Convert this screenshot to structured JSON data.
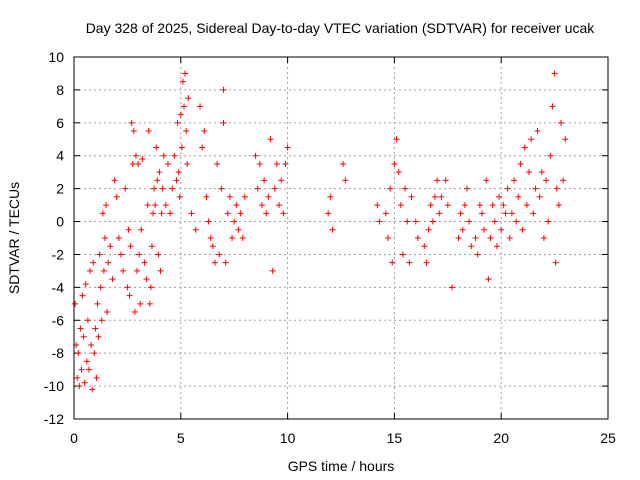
{
  "chart_data": {
    "type": "scatter",
    "title": "Day 328 of 2025, Sidereal Day-to-day VTEC variation (SDTVAR) for receiver ucak",
    "xlabel": "GPS time / hours",
    "ylabel": "SDTVAR / TECUs",
    "xlim": [
      0,
      25
    ],
    "ylim": [
      -12,
      10
    ],
    "xticks": [
      0,
      5,
      10,
      15,
      20,
      25
    ],
    "yticks": [
      -12,
      -10,
      -8,
      -6,
      -4,
      -2,
      0,
      2,
      4,
      6,
      8,
      10
    ],
    "grid": true,
    "marker": "+",
    "color": "#ff0000",
    "series": [
      {
        "name": "ucak",
        "points": [
          [
            0.05,
            -5.0
          ],
          [
            0.1,
            -7.5
          ],
          [
            0.15,
            -9.5
          ],
          [
            0.2,
            -8.0
          ],
          [
            0.25,
            -10.0
          ],
          [
            0.3,
            -6.5
          ],
          [
            0.35,
            -9.0
          ],
          [
            0.4,
            -4.5
          ],
          [
            0.45,
            -7.0
          ],
          [
            0.5,
            -9.8
          ],
          [
            0.55,
            -3.8
          ],
          [
            0.6,
            -8.5
          ],
          [
            0.65,
            -6.0
          ],
          [
            0.7,
            -9.0
          ],
          [
            0.75,
            -3.0
          ],
          [
            0.8,
            -7.5
          ],
          [
            0.85,
            -10.2
          ],
          [
            0.9,
            -2.5
          ],
          [
            0.95,
            -8.0
          ],
          [
            1.0,
            -6.5
          ],
          [
            1.05,
            -9.5
          ],
          [
            1.1,
            -5.0
          ],
          [
            1.15,
            -7.0
          ],
          [
            1.2,
            -2.0
          ],
          [
            1.25,
            -4.0
          ],
          [
            1.3,
            -6.0
          ],
          [
            1.35,
            0.5
          ],
          [
            1.4,
            -3.0
          ],
          [
            1.45,
            -1.0
          ],
          [
            1.5,
            1.0
          ],
          [
            1.55,
            -5.5
          ],
          [
            1.6,
            -2.5
          ],
          [
            1.7,
            -1.5
          ],
          [
            1.8,
            -3.5
          ],
          [
            1.9,
            2.5
          ],
          [
            2.0,
            1.5
          ],
          [
            2.1,
            -1.0
          ],
          [
            2.2,
            -2.0
          ],
          [
            2.3,
            -3.0
          ],
          [
            2.4,
            2.0
          ],
          [
            2.5,
            -4.0
          ],
          [
            2.55,
            -0.5
          ],
          [
            2.6,
            -4.5
          ],
          [
            2.65,
            -1.5
          ],
          [
            2.7,
            6.0
          ],
          [
            2.75,
            3.5
          ],
          [
            2.8,
            5.5
          ],
          [
            2.85,
            -5.5
          ],
          [
            2.9,
            4.0
          ],
          [
            2.95,
            -3.0
          ],
          [
            3.0,
            3.5
          ],
          [
            3.05,
            -2.0
          ],
          [
            3.1,
            -5.0
          ],
          [
            3.15,
            -0.5
          ],
          [
            3.2,
            3.8
          ],
          [
            3.3,
            -2.5
          ],
          [
            3.4,
            -3.5
          ],
          [
            3.45,
            1.0
          ],
          [
            3.5,
            5.5
          ],
          [
            3.55,
            -5.0
          ],
          [
            3.6,
            -4.0
          ],
          [
            3.65,
            -1.5
          ],
          [
            3.7,
            0.5
          ],
          [
            3.75,
            2.0
          ],
          [
            3.8,
            1.0
          ],
          [
            3.85,
            4.5
          ],
          [
            3.9,
            2.5
          ],
          [
            3.95,
            -2.0
          ],
          [
            4.0,
            3.0
          ],
          [
            4.05,
            -3.0
          ],
          [
            4.1,
            0.5
          ],
          [
            4.15,
            2.0
          ],
          [
            4.2,
            4.0
          ],
          [
            4.3,
            1.0
          ],
          [
            4.4,
            3.5
          ],
          [
            4.5,
            0.5
          ],
          [
            4.6,
            2.0
          ],
          [
            4.7,
            4.0
          ],
          [
            4.8,
            2.5
          ],
          [
            4.85,
            6.0
          ],
          [
            4.9,
            3.0
          ],
          [
            4.95,
            1.5
          ],
          [
            5.0,
            6.5
          ],
          [
            5.05,
            4.5
          ],
          [
            5.1,
            8.5
          ],
          [
            5.15,
            7.0
          ],
          [
            5.2,
            9.0
          ],
          [
            5.25,
            5.5
          ],
          [
            5.3,
            3.5
          ],
          [
            5.35,
            7.5
          ],
          [
            5.5,
            0.5
          ],
          [
            5.7,
            -0.5
          ],
          [
            5.9,
            7.0
          ],
          [
            6.0,
            4.5
          ],
          [
            6.1,
            5.5
          ],
          [
            6.2,
            1.5
          ],
          [
            6.3,
            0.0
          ],
          [
            6.4,
            -1.0
          ],
          [
            6.5,
            -1.5
          ],
          [
            6.6,
            -2.5
          ],
          [
            6.7,
            3.5
          ],
          [
            6.8,
            -2.0
          ],
          [
            6.9,
            2.0
          ],
          [
            7.0,
            8.0
          ],
          [
            7.0,
            6.0
          ],
          [
            7.1,
            -2.5
          ],
          [
            7.2,
            0.5
          ],
          [
            7.3,
            1.5
          ],
          [
            7.4,
            -1.0
          ],
          [
            7.5,
            0.0
          ],
          [
            7.6,
            1.0
          ],
          [
            7.7,
            -0.5
          ],
          [
            7.8,
            0.5
          ],
          [
            7.9,
            -1.0
          ],
          [
            8.0,
            1.5
          ],
          [
            8.5,
            4.0
          ],
          [
            8.6,
            2.0
          ],
          [
            8.7,
            3.5
          ],
          [
            8.8,
            1.0
          ],
          [
            8.9,
            2.5
          ],
          [
            9.0,
            0.5
          ],
          [
            9.1,
            1.5
          ],
          [
            9.2,
            5.0
          ],
          [
            9.3,
            -3.0
          ],
          [
            9.4,
            2.0
          ],
          [
            9.5,
            3.5
          ],
          [
            9.6,
            1.0
          ],
          [
            9.7,
            2.5
          ],
          [
            9.8,
            0.5
          ],
          [
            9.9,
            3.5
          ],
          [
            10.0,
            4.5
          ],
          [
            11.9,
            0.5
          ],
          [
            12.0,
            1.5
          ],
          [
            12.1,
            -0.5
          ],
          [
            12.6,
            3.5
          ],
          [
            12.7,
            2.5
          ],
          [
            14.2,
            1.0
          ],
          [
            14.3,
            0.0
          ],
          [
            14.6,
            0.5
          ],
          [
            14.7,
            -1.0
          ],
          [
            14.8,
            2.0
          ],
          [
            14.9,
            -2.5
          ],
          [
            15.0,
            3.5
          ],
          [
            15.1,
            5.0
          ],
          [
            15.2,
            3.0
          ],
          [
            15.3,
            1.0
          ],
          [
            15.4,
            -2.0
          ],
          [
            15.5,
            2.0
          ],
          [
            15.6,
            0.0
          ],
          [
            15.7,
            -2.5
          ],
          [
            15.8,
            1.5
          ],
          [
            16.0,
            0.0
          ],
          [
            16.1,
            -1.0
          ],
          [
            16.4,
            -1.5
          ],
          [
            16.5,
            -2.5
          ],
          [
            16.6,
            -0.5
          ],
          [
            16.7,
            1.0
          ],
          [
            16.8,
            0.0
          ],
          [
            16.9,
            1.5
          ],
          [
            17.0,
            2.5
          ],
          [
            17.1,
            0.5
          ],
          [
            17.2,
            1.5
          ],
          [
            17.4,
            2.5
          ],
          [
            17.5,
            1.0
          ],
          [
            17.7,
            -4.0
          ],
          [
            18.0,
            -1.0
          ],
          [
            18.1,
            0.5
          ],
          [
            18.2,
            -0.5
          ],
          [
            18.3,
            1.0
          ],
          [
            18.4,
            2.0
          ],
          [
            18.5,
            0.0
          ],
          [
            18.6,
            -1.5
          ],
          [
            18.8,
            -1.0
          ],
          [
            18.9,
            -2.0
          ],
          [
            19.0,
            1.0
          ],
          [
            19.1,
            0.5
          ],
          [
            19.2,
            -0.5
          ],
          [
            19.3,
            2.5
          ],
          [
            19.4,
            -3.5
          ],
          [
            19.5,
            -1.0
          ],
          [
            19.6,
            1.0
          ],
          [
            19.7,
            0.0
          ],
          [
            19.8,
            -1.5
          ],
          [
            19.9,
            1.5
          ],
          [
            20.0,
            -0.5
          ],
          [
            20.1,
            1.0
          ],
          [
            20.2,
            0.5
          ],
          [
            20.3,
            2.0
          ],
          [
            20.4,
            -1.0
          ],
          [
            20.5,
            0.5
          ],
          [
            20.6,
            2.5
          ],
          [
            20.7,
            0.0
          ],
          [
            20.8,
            1.5
          ],
          [
            20.9,
            3.5
          ],
          [
            21.0,
            -0.5
          ],
          [
            21.1,
            4.5
          ],
          [
            21.2,
            1.0
          ],
          [
            21.3,
            3.0
          ],
          [
            21.4,
            5.0
          ],
          [
            21.5,
            0.5
          ],
          [
            21.6,
            2.0
          ],
          [
            21.7,
            5.5
          ],
          [
            21.8,
            1.5
          ],
          [
            21.9,
            3.0
          ],
          [
            22.0,
            -1.0
          ],
          [
            22.1,
            2.5
          ],
          [
            22.2,
            0.0
          ],
          [
            22.3,
            4.0
          ],
          [
            22.4,
            7.0
          ],
          [
            22.5,
            9.0
          ],
          [
            22.55,
            -2.5
          ],
          [
            22.6,
            2.0
          ],
          [
            22.7,
            1.0
          ],
          [
            22.8,
            6.0
          ],
          [
            22.9,
            2.5
          ],
          [
            23.0,
            5.0
          ]
        ]
      }
    ]
  }
}
